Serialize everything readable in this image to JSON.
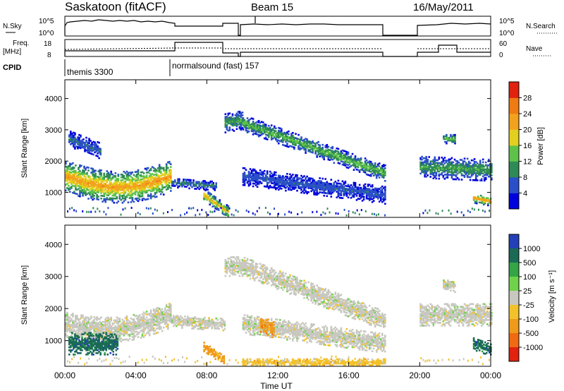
{
  "header": {
    "station": "Saskatoon (fitACF)",
    "beam": "Beam 15",
    "date": "16/May/2011"
  },
  "params": {
    "nsky_label": "N.Sky",
    "nsky_top": "10^5",
    "nsky_bottom": "10^0",
    "nsearch_label": "N.Search",
    "nsearch_top": "10^5",
    "nsearch_bottom": "10^0",
    "freq_label_1": "Freq.",
    "freq_label_2": "[MHz]",
    "freq_top": "18",
    "freq_bottom": "8",
    "nave_label": "Nave",
    "nave_top": "60",
    "nave_bottom": "0",
    "cpid_label": "CPID",
    "cpid_1": "themis 3300",
    "cpid_2": "normalsound (fast) 157"
  },
  "chart_data": [
    {
      "type": "heatmap",
      "name": "power-panel",
      "ylabel": "Slant Range [km]",
      "yticks": [
        "1000",
        "2000",
        "3000",
        "4000"
      ],
      "ylim": [
        200,
        4600
      ],
      "colorbar_label": "Power [dB]",
      "colorbar_ticks": [
        "4",
        "8",
        "12",
        "16",
        "20",
        "24",
        "28"
      ],
      "colorbar_colors": [
        "#0000dd",
        "#2b4fc8",
        "#2f8a57",
        "#5ec24a",
        "#e3d01e",
        "#f3a21e",
        "#ef7b12",
        "#e0220f"
      ],
      "bands": [
        {
          "t0": 0.0,
          "t1": 6.0,
          "r0": 1500,
          "r1": 1500,
          "amp": -350,
          "w": 500,
          "core": 23
        },
        {
          "t0": 0.2,
          "t1": 2.0,
          "r0": 2700,
          "r1": 2300,
          "amp": 0,
          "w": 250,
          "core": 8
        },
        {
          "t0": 6.0,
          "t1": 8.5,
          "r0": 1300,
          "r1": 1200,
          "amp": 0,
          "w": 150,
          "core": 9
        },
        {
          "t0": 7.8,
          "t1": 9.2,
          "r0": 900,
          "r1": 350,
          "amp": 0,
          "w": 180,
          "core": 21
        },
        {
          "t0": 9.0,
          "t1": 10.0,
          "r0": 3200,
          "r1": 3300,
          "amp": 0,
          "w": 300,
          "core": 12
        },
        {
          "t0": 10.0,
          "t1": 18.0,
          "r0": 3200,
          "r1": 1600,
          "amp": 0,
          "w": 250,
          "core": 14
        },
        {
          "t0": 10.0,
          "t1": 18.0,
          "r0": 1500,
          "r1": 900,
          "amp": 0,
          "w": 280,
          "core": 7
        },
        {
          "t0": 20.0,
          "t1": 24.0,
          "r0": 1800,
          "r1": 1700,
          "amp": 0,
          "w": 350,
          "core": 12
        },
        {
          "t0": 21.3,
          "t1": 22.0,
          "r0": 2700,
          "r1": 2700,
          "amp": 0,
          "w": 150,
          "core": 15
        },
        {
          "t0": 23.0,
          "t1": 24.0,
          "r0": 800,
          "r1": 700,
          "amp": 0,
          "w": 150,
          "core": 24
        }
      ]
    },
    {
      "type": "heatmap",
      "name": "velocity-panel",
      "ylabel": "Slant Range [km]",
      "yticks": [
        "1000",
        "2000",
        "3000",
        "4000"
      ],
      "ylim": [
        200,
        4600
      ],
      "colorbar_label": "Velocity [m s⁻¹]",
      "colorbar_ticks": [
        "1000",
        "500",
        "100",
        "25",
        "-25",
        "-100",
        "-500",
        "-1000"
      ],
      "colorbar_colors": [
        "#2440b8",
        "#1a6a56",
        "#33a545",
        "#6fd24a",
        "#c8c8c0",
        "#f3c22a",
        "#ef9a1a",
        "#ef6a12",
        "#e0220f"
      ],
      "bands": [
        {
          "t0": 0.0,
          "t1": 6.0,
          "r0": 1500,
          "r1": 1800,
          "amp": -300,
          "w": 400,
          "core": "grey"
        },
        {
          "t0": 0.2,
          "t1": 3.0,
          "r0": 900,
          "r1": 900,
          "amp": 0,
          "w": 350,
          "core": "green"
        },
        {
          "t0": 6.0,
          "t1": 9.0,
          "r0": 1600,
          "r1": 1500,
          "amp": 0,
          "w": 200,
          "core": "grey"
        },
        {
          "t0": 7.8,
          "t1": 9.0,
          "r0": 800,
          "r1": 350,
          "amp": 0,
          "w": 150,
          "core": "orange"
        },
        {
          "t0": 9.0,
          "t1": 10.0,
          "r0": 3300,
          "r1": 3300,
          "amp": 0,
          "w": 300,
          "core": "grey"
        },
        {
          "t0": 10.0,
          "t1": 18.0,
          "r0": 3300,
          "r1": 1600,
          "amp": 0,
          "w": 300,
          "core": "grey"
        },
        {
          "t0": 10.0,
          "t1": 18.0,
          "r0": 1500,
          "r1": 900,
          "amp": 0,
          "w": 300,
          "core": "grey"
        },
        {
          "t0": 10.0,
          "t1": 18.0,
          "r0": 300,
          "r1": 300,
          "amp": 0,
          "w": 120,
          "core": "yellow"
        },
        {
          "t0": 11.0,
          "t1": 11.8,
          "r0": 1500,
          "r1": 1300,
          "amp": 0,
          "w": 250,
          "core": "orange"
        },
        {
          "t0": 20.0,
          "t1": 24.0,
          "r0": 1800,
          "r1": 1800,
          "amp": 0,
          "w": 350,
          "core": "grey"
        },
        {
          "t0": 21.3,
          "t1": 22.0,
          "r0": 2700,
          "r1": 2700,
          "amp": 0,
          "w": 200,
          "core": "grey"
        },
        {
          "t0": 23.0,
          "t1": 24.0,
          "r0": 900,
          "r1": 700,
          "amp": 0,
          "w": 200,
          "core": "green"
        }
      ]
    }
  ],
  "time_axis": {
    "ticks": [
      "00:00",
      "04:00",
      "08:00",
      "12:00",
      "16:00",
      "20:00",
      "00:00"
    ],
    "xlabel": "Time UT",
    "xlim": [
      0,
      24
    ],
    "gaps": [
      [
        18.0,
        20.0
      ]
    ]
  }
}
